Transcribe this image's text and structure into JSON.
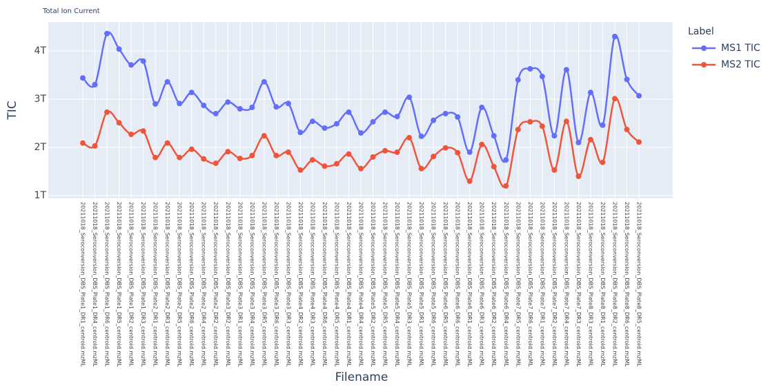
{
  "chart_data": {
    "type": "line",
    "title": "Total Ion Current",
    "xlabel": "Filename",
    "ylabel": "TIC",
    "legend_title": "Label",
    "categories": [
      "20211018_Seroconversion_DBS_Plate1_DR1_centroid.mzML",
      "20211018_Seroconversion_DBS_Plate1_DR4_centroid.mzML",
      "20211018_Seroconversion_DBS_Plate1_DR6_centroid.mzML",
      "20211018_Seroconversion_DBS_Plate1_DR5_centroid.mzML",
      "20211018_Seroconversion_DBS_Plate1_DR2_centroid.mzML",
      "20211018_Seroconversion_DBS_Plate1_DR3_centroid.mzML",
      "20211018_Seroconversion_DBS_Plate2_DR1_centroid.mzML",
      "20211018_Seroconversion_DBS_Plate2_DR3_centroid.mzML",
      "20211018_Seroconversion_DBS_Plate2_DR5_centroid.mzML",
      "20211018_Seroconversion_DBS_Plate2_DR6_centroid.mzML",
      "20211018_Seroconversion_DBS_Plate2_DR4_centroid.mzML",
      "20211018_Seroconversion_DBS_Plate2_DR2_centroid.mzML",
      "20211018_Seroconversion_DBS_Plate3_DR2_centroid.mzML",
      "20211018_Seroconversion_DBS_Plate3_DR1_centroid.mzML",
      "20211018_Seroconversion_DBS_Plate3_DR4_centroid.mzML",
      "20211018_Seroconversion_DBS_Plate3_DR5_centroid.mzML",
      "20211018_Seroconversion_DBS_Plate3_DR6_centroid.mzML",
      "20211018_Seroconversion_DBS_Plate3_DR3_centroid.mzML",
      "20211018_Seroconversion_DBS_Plate4_DR2_centroid.mzML",
      "20211018_Seroconversion_DBS_Plate4_DR3_centroid.mzML",
      "20211018_Seroconversion_DBS_Plate4_DR6_centroid.mzML",
      "20211018_Seroconversion_DBS_Plate4_DR5_centroid.mzML",
      "20211018_Seroconversion_DBS_Plate4_DR1_centroid.mzML",
      "20211018_Seroconversion_DBS_Plate4_DR4_centroid.mzML",
      "20211018_Seroconversion_DBS_Plate5_DR2_centroid.mzML",
      "20211018_Seroconversion_DBS_Plate5_DR5_centroid.mzML",
      "20211018_Seroconversion_DBS_Plate5_DR4_centroid.mzML",
      "20211018_Seroconversion_DBS_Plate5_DR3_centroid.mzML",
      "20211018_Seroconversion_DBS_Plate5_DR1_centroid.mzML",
      "20211018_Seroconversion_DBS_Plate5_DR6_centroid.mzML",
      "20211018_Seroconversion_DBS_Plate6_DR5_centroid.mzML",
      "20211018_Seroconversion_DBS_Plate6_DR6_centroid.mzML",
      "20211018_Seroconversion_DBS_Plate6_DR1_centroid.mzML",
      "20211018_Seroconversion_DBS_Plate6_DR3_centroid.mzML",
      "20211018_Seroconversion_DBS_Plate6_DR2_centroid.mzML",
      "20211018_Seroconversion_DBS_Plate6_DR4_centroid.mzML",
      "20211018_Seroconversion_DBS_Plate7_DR5_centroid.mzML",
      "20211018_Seroconversion_DBS_Plate7_DR6_centroid.mzML",
      "20211018_Seroconversion_DBS_Plate7_DR1_centroid.mzML",
      "20211018_Seroconversion_DBS_Plate7_DR2_centroid.mzML",
      "20211018_Seroconversion_DBS_Plate7_DR4_centroid.mzML",
      "20211018_Seroconversion_DBS_Plate7_DR3_centroid.mzML",
      "20211018_Seroconversion_DBS_Plate8_DR3_centroid.mzML",
      "20211018_Seroconversion_DBS_Plate8_DR1_centroid.mzML",
      "20211018_Seroconversion_DBS_Plate8_DR2_centroid.mzML",
      "20211018_Seroconversion_DBS_Plate8_DR6_centroid.mzML",
      "20211018_Seroconversion_DBS_Plate8_DR5_centroid.mzML"
    ],
    "series": [
      {
        "name": "MS1 TIC",
        "color": "#636efa",
        "values": [
          3440000000000,
          3300000000000,
          4360000000000,
          4040000000000,
          3710000000000,
          3790000000000,
          2900000000000,
          3360000000000,
          2910000000000,
          3140000000000,
          2870000000000,
          2700000000000,
          2940000000000,
          2800000000000,
          2830000000000,
          3360000000000,
          2840000000000,
          2910000000000,
          2310000000000,
          2540000000000,
          2400000000000,
          2490000000000,
          2730000000000,
          2300000000000,
          2530000000000,
          2730000000000,
          2640000000000,
          3040000000000,
          2230000000000,
          2560000000000,
          2700000000000,
          2630000000000,
          1900000000000,
          2830000000000,
          2240000000000,
          1740000000000,
          3400000000000,
          3630000000000,
          3470000000000,
          2240000000000,
          3610000000000,
          2100000000000,
          3140000000000,
          2460000000000,
          4300000000000,
          3410000000000,
          3070000000000
        ]
      },
      {
        "name": "MS2 TIC",
        "color": "#ef553b",
        "values": [
          2090000000000,
          2030000000000,
          2730000000000,
          2510000000000,
          2270000000000,
          2340000000000,
          1790000000000,
          2090000000000,
          1790000000000,
          1960000000000,
          1760000000000,
          1670000000000,
          1910000000000,
          1770000000000,
          1830000000000,
          2240000000000,
          1830000000000,
          1900000000000,
          1530000000000,
          1740000000000,
          1610000000000,
          1660000000000,
          1860000000000,
          1560000000000,
          1800000000000,
          1930000000000,
          1900000000000,
          2200000000000,
          1560000000000,
          1810000000000,
          1990000000000,
          1890000000000,
          1300000000000,
          2060000000000,
          1600000000000,
          1200000000000,
          2370000000000,
          2530000000000,
          2440000000000,
          1530000000000,
          2540000000000,
          1400000000000,
          2160000000000,
          1690000000000,
          3010000000000,
          2370000000000,
          2110000000000
        ]
      }
    ],
    "ylim": [
      943000000000,
      4600000000000
    ],
    "yticks": [
      {
        "value": 1000000000000,
        "label": "1T"
      },
      {
        "value": 2000000000000,
        "label": "2T"
      },
      {
        "value": 3000000000000,
        "label": "3T"
      },
      {
        "value": 4000000000000,
        "label": "4T"
      }
    ],
    "grid": true,
    "line_shape": "spline",
    "legend": "right"
  }
}
